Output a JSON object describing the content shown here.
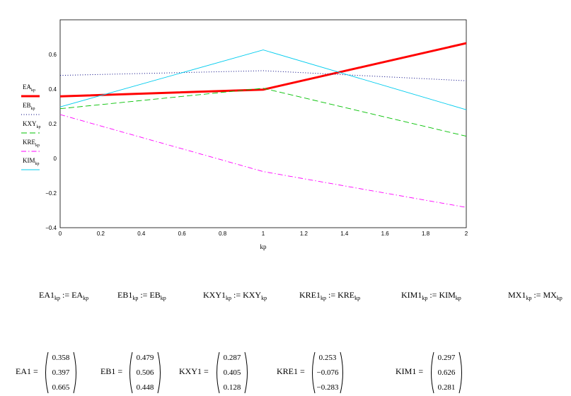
{
  "chart_data": {
    "type": "line",
    "x": [
      0,
      1,
      2
    ],
    "xlim": [
      0,
      2
    ],
    "ylim": [
      -0.4,
      0.8
    ],
    "xticks": [
      "0",
      "0.2",
      "0.4",
      "0.6",
      "0.8",
      "1",
      "1.2",
      "1.4",
      "1.6",
      "1.8",
      "2"
    ],
    "yticks": [
      "-0.4",
      "-0.2",
      "0",
      "0.2",
      "0.4",
      "0.6"
    ],
    "xlabel": "kp",
    "legend_position": "left",
    "series": [
      {
        "name": "EA",
        "sub": "kp",
        "color": "#ff0000",
        "values": [
          0.358,
          0.397,
          0.665
        ]
      },
      {
        "name": "EB",
        "sub": "kp",
        "color": "#000080",
        "values": [
          0.479,
          0.506,
          0.448
        ]
      },
      {
        "name": "KXY",
        "sub": "kp",
        "color": "#00c000",
        "values": [
          0.287,
          0.405,
          0.128
        ]
      },
      {
        "name": "KRE",
        "sub": "kp",
        "color": "#ff00ff",
        "values": [
          0.253,
          -0.076,
          -0.283
        ]
      },
      {
        "name": "KIM",
        "sub": "kp",
        "color": "#00ccee",
        "values": [
          0.297,
          0.626,
          0.281
        ]
      }
    ]
  },
  "definitions": [
    {
      "lhs": "EA1",
      "lsub": "kp",
      "rhs": "EA",
      "rsub": "kp"
    },
    {
      "lhs": "EB1",
      "lsub": "kp",
      "rhs": "EB",
      "rsub": "kp"
    },
    {
      "lhs": "KXY1",
      "lsub": "kp",
      "rhs": "KXY",
      "rsub": "kp"
    },
    {
      "lhs": "KRE1",
      "lsub": "kp",
      "rhs": "KRE",
      "rsub": "kp"
    },
    {
      "lhs": "KIM1",
      "lsub": "kp",
      "rhs": "KIM",
      "rsub": "kp"
    },
    {
      "lhs": "MX1",
      "lsub": "kp",
      "rhs": "MX",
      "rsub": "kp"
    }
  ],
  "assign_op": ":=",
  "results": [
    {
      "name": "EA1 =",
      "values": [
        "0.358",
        "0.397",
        "0.665"
      ]
    },
    {
      "name": "EB1 =",
      "values": [
        "0.479",
        "0.506",
        "0.448"
      ]
    },
    {
      "name": "KXY1 =",
      "values": [
        "0.287",
        "0.405",
        "0.128"
      ]
    },
    {
      "name": "KRE1 =",
      "values": [
        "0.253",
        "−0.076",
        "−0.283"
      ]
    },
    {
      "name": "KIM1 =",
      "values": [
        "0.297",
        "0.626",
        "0.281"
      ]
    }
  ]
}
